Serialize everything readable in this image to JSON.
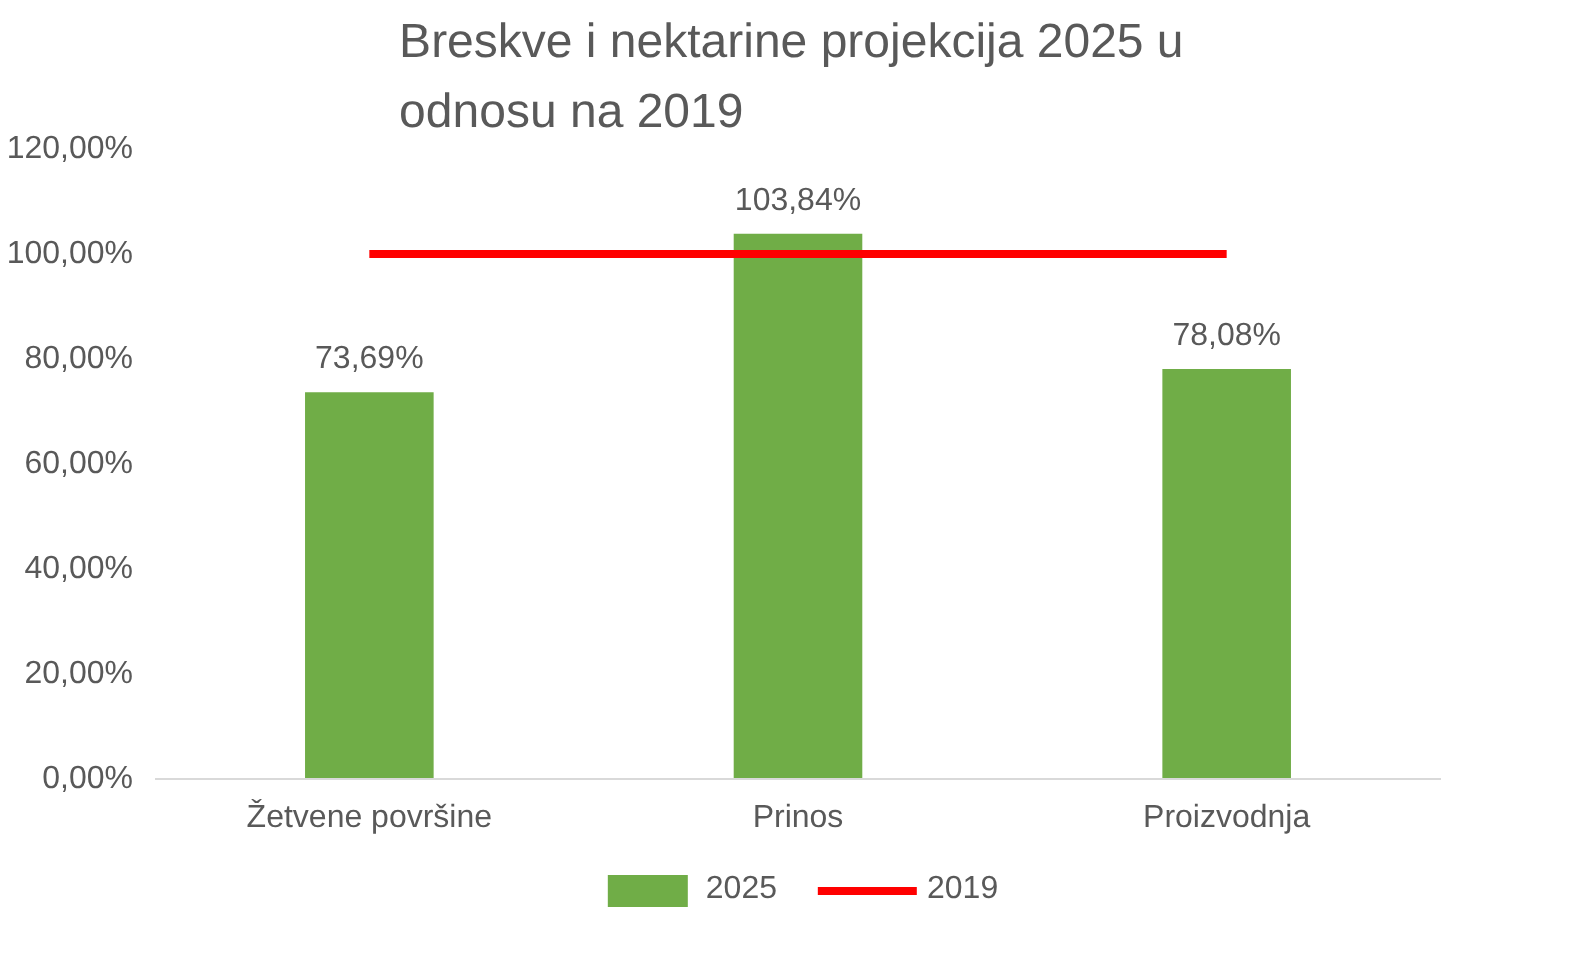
{
  "chart_data": {
    "type": "bar",
    "title": "Breskve i nektarine projekcija  2025 u\nodnosu na 2019",
    "categories": [
      "Žetvene površine",
      "Prinos",
      "Proizvodnja"
    ],
    "series": [
      {
        "name": "2025",
        "color": "#70ad47",
        "values": [
          73.69,
          103.84,
          78.08
        ],
        "value_labels": [
          "73,69%",
          "103,84%",
          "78,08%"
        ]
      },
      {
        "name": "2019",
        "type": "line",
        "color": "#ff0000",
        "values": [
          100,
          100,
          100
        ]
      }
    ],
    "ylim": [
      0,
      120
    ],
    "yticks": [
      {
        "value": 0,
        "label": "0,00%"
      },
      {
        "value": 20,
        "label": "20,00%"
      },
      {
        "value": 40,
        "label": "40,00%"
      },
      {
        "value": 60,
        "label": "60,00%"
      },
      {
        "value": 80,
        "label": "80,00%"
      },
      {
        "value": 100,
        "label": "100,00%"
      },
      {
        "value": 120,
        "label": "120,00%"
      }
    ],
    "grid": false,
    "legend": "bottom",
    "marker": "none",
    "line_style": "solid"
  }
}
